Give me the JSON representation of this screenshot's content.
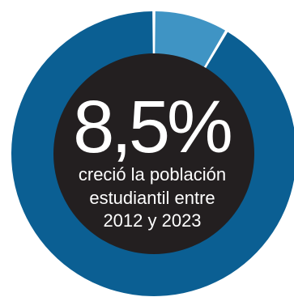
{
  "chart_data": {
    "type": "pie",
    "variant": "donut",
    "categories": [
      "",
      ""
    ],
    "values": [
      8.5,
      91.5
    ],
    "colors": [
      "#3f94c4",
      "#0b5f93"
    ],
    "center_value": "8,5%",
    "center_caption": [
      "creció la población",
      "estudiantil entre",
      "2012 y 2023"
    ],
    "title": "",
    "legend": false
  },
  "colors": {
    "center_fill": "#231f20",
    "background": "#ffffff"
  }
}
